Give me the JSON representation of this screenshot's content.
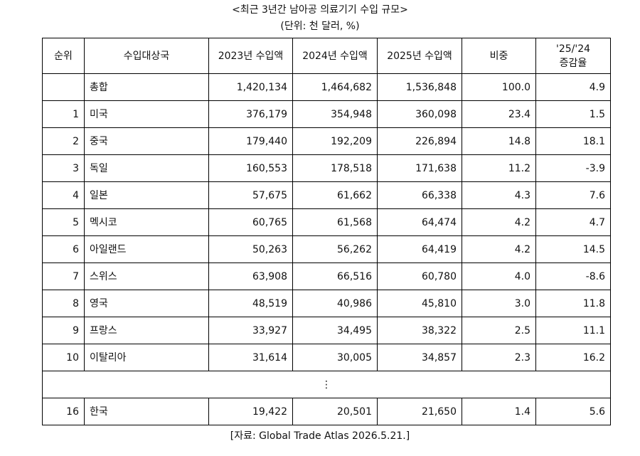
{
  "title": "<최근 3년간 남아공 의료기기 수입 규모>",
  "unit": "(단위: 천 달러, %)",
  "headers": {
    "rank": "순위",
    "country": "수입대상국",
    "y2023": "2023년 수입액",
    "y2024": "2024년 수입액",
    "y2025": "2025년 수입액",
    "share": "비중",
    "growth_line1": "'25/'24",
    "growth_line2": "증감율"
  },
  "rows": [
    {
      "rank": "",
      "country": "총합",
      "y2023": "1,420,134",
      "y2024": "1,464,682",
      "y2025": "1,536,848",
      "share": "100.0",
      "growth": "4.9"
    },
    {
      "rank": "1",
      "country": "미국",
      "y2023": "376,179",
      "y2024": "354,948",
      "y2025": "360,098",
      "share": "23.4",
      "growth": "1.5"
    },
    {
      "rank": "2",
      "country": "중국",
      "y2023": "179,440",
      "y2024": "192,209",
      "y2025": "226,894",
      "share": "14.8",
      "growth": "18.1"
    },
    {
      "rank": "3",
      "country": "독일",
      "y2023": "160,553",
      "y2024": "178,518",
      "y2025": "171,638",
      "share": "11.2",
      "growth": "-3.9"
    },
    {
      "rank": "4",
      "country": "일본",
      "y2023": "57,675",
      "y2024": "61,662",
      "y2025": "66,338",
      "share": "4.3",
      "growth": "7.6"
    },
    {
      "rank": "5",
      "country": "멕시코",
      "y2023": "60,765",
      "y2024": "61,568",
      "y2025": "64,474",
      "share": "4.2",
      "growth": "4.7"
    },
    {
      "rank": "6",
      "country": "아일랜드",
      "y2023": "50,263",
      "y2024": "56,262",
      "y2025": "64,419",
      "share": "4.2",
      "growth": "14.5"
    },
    {
      "rank": "7",
      "country": "스위스",
      "y2023": "63,908",
      "y2024": "66,516",
      "y2025": "60,780",
      "share": "4.0",
      "growth": "-8.6"
    },
    {
      "rank": "8",
      "country": "영국",
      "y2023": "48,519",
      "y2024": "40,986",
      "y2025": "45,810",
      "share": "3.0",
      "growth": "11.8"
    },
    {
      "rank": "9",
      "country": "프랑스",
      "y2023": "33,927",
      "y2024": "34,495",
      "y2025": "38,322",
      "share": "2.5",
      "growth": "11.1"
    },
    {
      "rank": "10",
      "country": "이탈리아",
      "y2023": "31,614",
      "y2024": "30,005",
      "y2025": "34,857",
      "share": "2.3",
      "growth": "16.2"
    }
  ],
  "ellipsis": "⋮",
  "korea_row": {
    "rank": "16",
    "country": "한국",
    "y2023": "19,422",
    "y2024": "20,501",
    "y2025": "21,650",
    "share": "1.4",
    "growth": "5.6"
  },
  "source": "[자료: Global Trade Atlas 2026.5.21.]"
}
